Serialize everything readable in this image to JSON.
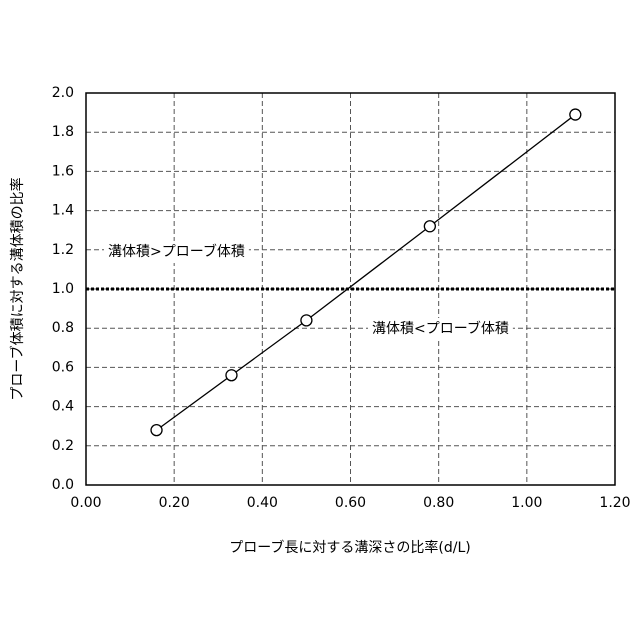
{
  "chart_data": {
    "type": "line",
    "x_label": "プローブ長に対する溝深さの比率(d/L)",
    "y_label": "プローブ体積に対する溝体積の比率",
    "x": [
      0.16,
      0.33,
      0.5,
      0.78,
      1.11
    ],
    "values": [
      0.28,
      0.56,
      0.84,
      1.32,
      1.89
    ],
    "color": "#000000",
    "reference_line": 1.0,
    "annotations": [
      "溝体積>プローブ体積",
      "溝体積<プローブ体積"
    ],
    "xlim": [
      0,
      1.2
    ],
    "xticks": [
      {
        "value": 0,
        "label": "0.00"
      },
      {
        "value": 0.2,
        "label": "0.20"
      },
      {
        "value": 0.4,
        "label": "0.40"
      },
      {
        "value": 0.6,
        "label": "0.60"
      },
      {
        "value": 0.8,
        "label": "0.80"
      },
      {
        "value": 1.0,
        "label": "1.00"
      },
      {
        "value": 1.2,
        "label": "1.20"
      }
    ],
    "ylim": [
      0,
      2
    ],
    "yticks": [
      {
        "value": 0,
        "label": "0.0"
      },
      0.2,
      0.4,
      0.6,
      0.8,
      {
        "value": 1,
        "label": "1.0"
      },
      1.2,
      1.4,
      1.6,
      1.8,
      {
        "value": 2,
        "label": "2.0"
      }
    ],
    "grid": true
  }
}
